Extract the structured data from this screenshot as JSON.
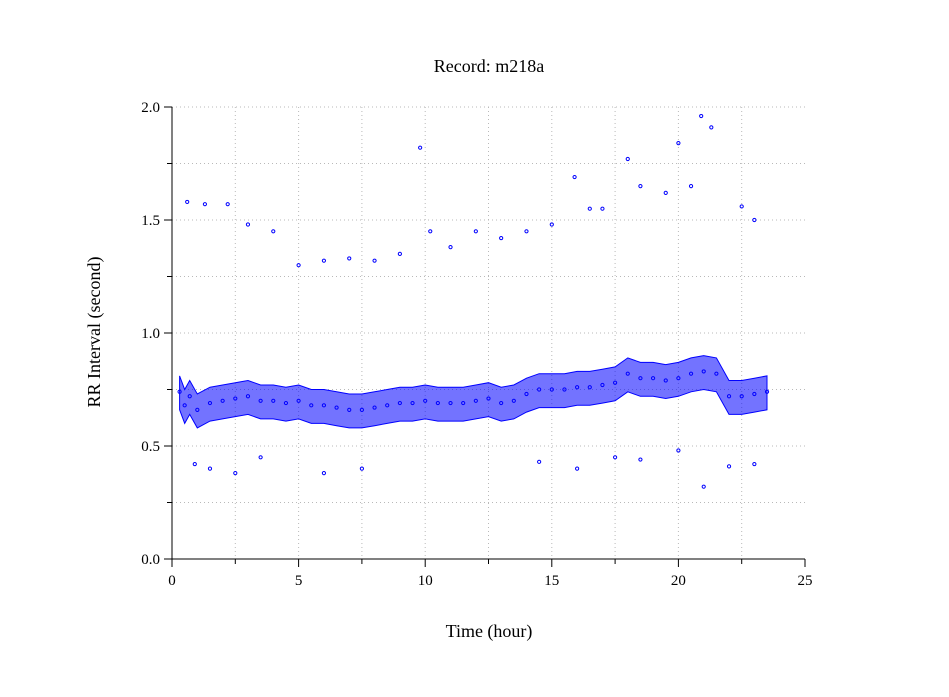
{
  "chart_data": {
    "type": "scatter",
    "title": "Record:  m218a",
    "xlabel": "Time (hour)",
    "ylabel": "RR Interval (second)",
    "xlim": [
      0,
      25
    ],
    "ylim": [
      0,
      2.0
    ],
    "x_ticks": [
      0,
      5,
      10,
      15,
      20,
      25
    ],
    "x_tick_labels": [
      "0",
      "5",
      "10",
      "15",
      "20",
      "25"
    ],
    "y_ticks": [
      0,
      0.5,
      1.0,
      1.5,
      2.0
    ],
    "y_tick_labels": [
      "0.0",
      "0.5",
      "1.0",
      "1.5",
      "2.0"
    ],
    "grid": true,
    "marker_color": "#0000ff",
    "series": [
      {
        "values": [
          [
            0.3,
            0.74
          ],
          [
            0.5,
            0.68
          ],
          [
            0.7,
            0.72
          ],
          [
            1.0,
            0.66
          ],
          [
            1.5,
            0.69
          ],
          [
            2.0,
            0.7
          ],
          [
            2.5,
            0.71
          ],
          [
            3.0,
            0.72
          ],
          [
            3.5,
            0.7
          ],
          [
            4.0,
            0.7
          ],
          [
            4.5,
            0.69
          ],
          [
            5.0,
            0.7
          ],
          [
            5.5,
            0.68
          ],
          [
            6.0,
            0.68
          ],
          [
            6.5,
            0.67
          ],
          [
            7.0,
            0.66
          ],
          [
            7.5,
            0.66
          ],
          [
            8.0,
            0.67
          ],
          [
            8.5,
            0.68
          ],
          [
            9.0,
            0.69
          ],
          [
            9.5,
            0.69
          ],
          [
            10.0,
            0.7
          ],
          [
            10.5,
            0.69
          ],
          [
            11.0,
            0.69
          ],
          [
            11.5,
            0.69
          ],
          [
            12.0,
            0.7
          ],
          [
            12.5,
            0.71
          ],
          [
            13.0,
            0.69
          ],
          [
            13.5,
            0.7
          ],
          [
            14.0,
            0.73
          ],
          [
            14.5,
            0.75
          ],
          [
            15.0,
            0.75
          ],
          [
            15.5,
            0.75
          ],
          [
            16.0,
            0.76
          ],
          [
            16.5,
            0.76
          ],
          [
            17.0,
            0.77
          ],
          [
            17.5,
            0.78
          ],
          [
            18.0,
            0.82
          ],
          [
            18.5,
            0.8
          ],
          [
            19.0,
            0.8
          ],
          [
            19.5,
            0.79
          ],
          [
            20.0,
            0.8
          ],
          [
            20.5,
            0.82
          ],
          [
            21.0,
            0.83
          ],
          [
            21.5,
            0.82
          ],
          [
            22.0,
            0.72
          ],
          [
            22.5,
            0.72
          ],
          [
            23.0,
            0.73
          ],
          [
            23.5,
            0.74
          ],
          [
            0.6,
            1.58
          ],
          [
            1.3,
            1.57
          ],
          [
            2.2,
            1.57
          ],
          [
            3.0,
            1.48
          ],
          [
            4.0,
            1.45
          ],
          [
            5.0,
            1.3
          ],
          [
            6.0,
            1.32
          ],
          [
            7.0,
            1.33
          ],
          [
            8.0,
            1.32
          ],
          [
            9.0,
            1.35
          ],
          [
            9.8,
            1.82
          ],
          [
            10.2,
            1.45
          ],
          [
            11.0,
            1.38
          ],
          [
            12.0,
            1.45
          ],
          [
            13.0,
            1.42
          ],
          [
            14.0,
            1.45
          ],
          [
            15.0,
            1.48
          ],
          [
            15.9,
            1.69
          ],
          [
            16.5,
            1.55
          ],
          [
            17.0,
            1.55
          ],
          [
            18.0,
            1.77
          ],
          [
            18.5,
            1.65
          ],
          [
            19.5,
            1.62
          ],
          [
            20.0,
            1.84
          ],
          [
            20.5,
            1.65
          ],
          [
            20.9,
            1.96
          ],
          [
            21.3,
            1.91
          ],
          [
            22.5,
            1.56
          ],
          [
            23.0,
            1.5
          ],
          [
            0.9,
            0.42
          ],
          [
            1.5,
            0.4
          ],
          [
            2.5,
            0.38
          ],
          [
            3.5,
            0.45
          ],
          [
            6.0,
            0.38
          ],
          [
            7.5,
            0.4
          ],
          [
            14.5,
            0.43
          ],
          [
            16.0,
            0.4
          ],
          [
            17.5,
            0.45
          ],
          [
            18.5,
            0.44
          ],
          [
            20.0,
            0.48
          ],
          [
            21.0,
            0.32
          ],
          [
            22.0,
            0.41
          ],
          [
            23.0,
            0.42
          ]
        ]
      }
    ]
  }
}
